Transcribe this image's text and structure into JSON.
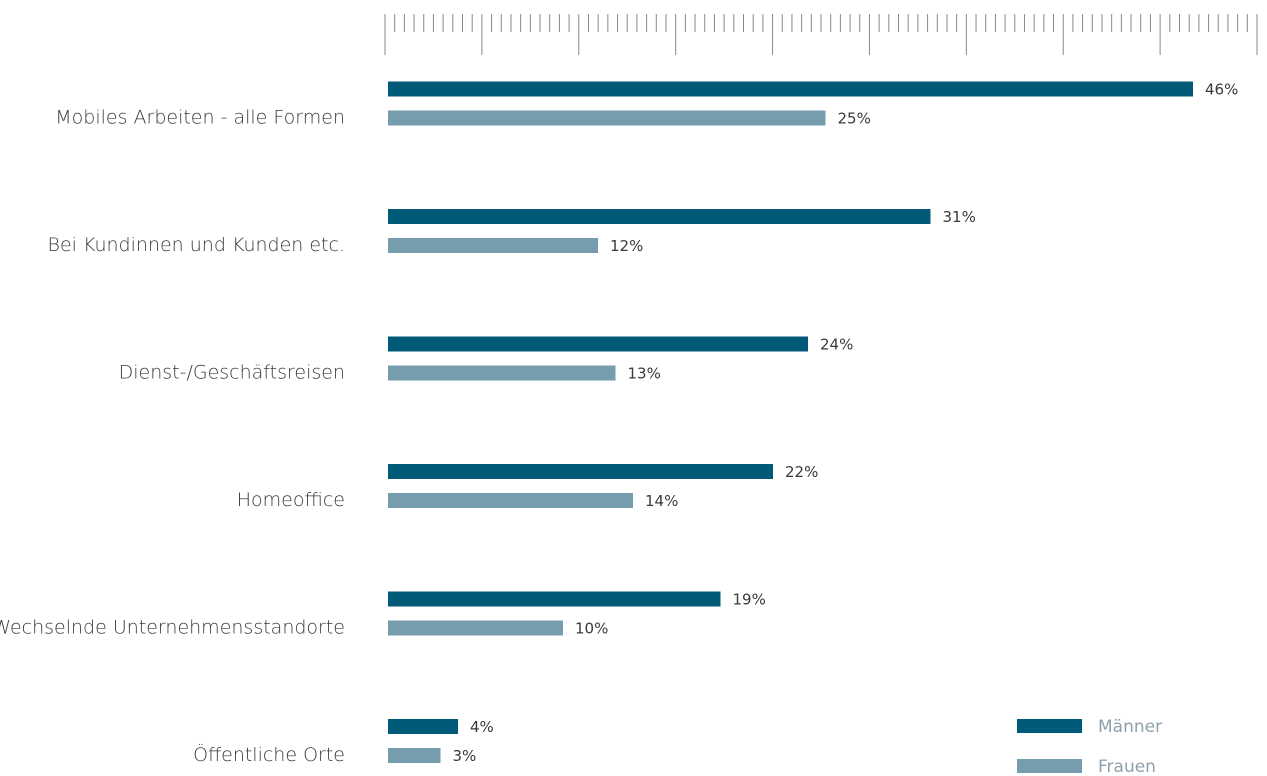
{
  "chart_data": {
    "type": "bar",
    "orientation": "horizontal",
    "categories": [
      "Mobiles Arbeiten - alle Formen",
      "Bei Kundinnen und Kunden etc.",
      "Dienst-/Geschäftsreisen",
      "Homeoffice",
      "Wechselnde Unternehmensstandorte",
      "Öffentliche Orte"
    ],
    "series": [
      {
        "name": "Männer",
        "color": "#005a78",
        "values": [
          46,
          31,
          24,
          22,
          19,
          4
        ],
        "value_labels": [
          "46%",
          "31%",
          "24%",
          "22%",
          "19%",
          "4%"
        ]
      },
      {
        "name": "Frauen",
        "color": "#769dae",
        "values": [
          25,
          12,
          13,
          14,
          10,
          3
        ],
        "value_labels": [
          "25%",
          "12%",
          "13%",
          "14%",
          "10%",
          "3%"
        ]
      }
    ],
    "xlim": [
      0,
      50
    ],
    "legend": "lower right"
  }
}
